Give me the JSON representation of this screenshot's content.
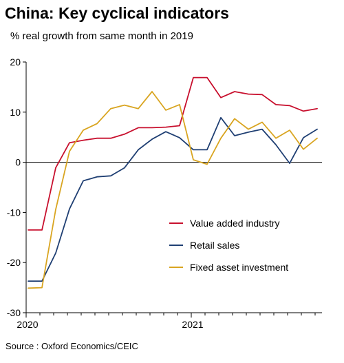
{
  "header": {
    "title": "China: Key cyclical indicators",
    "subtitle": "% real growth from same month in 2019"
  },
  "footer": {
    "source": "Source : Oxford Economics/CEIC"
  },
  "chart_data": {
    "type": "line",
    "title": "China: Key cyclical indicators",
    "subtitle": "% real growth from same month in 2019",
    "xlabel": "",
    "ylabel": "",
    "x_tick_labels": [
      {
        "label": "2020",
        "x_index": 0
      },
      {
        "label": "2021",
        "x_index": 12
      }
    ],
    "x": [
      "2020-01",
      "2020-02",
      "2020-03",
      "2020-04",
      "2020-05",
      "2020-06",
      "2020-07",
      "2020-08",
      "2020-09",
      "2020-10",
      "2020-11",
      "2020-12",
      "2021-01",
      "2021-02",
      "2021-03",
      "2021-04",
      "2021-05",
      "2021-06",
      "2021-07",
      "2021-08",
      "2021-09",
      "2021-10"
    ],
    "ylim": [
      -30,
      20
    ],
    "yticks": [
      -30,
      -20,
      -10,
      0,
      10,
      20
    ],
    "grid": false,
    "zero_line": true,
    "legend_position": "bottom-right",
    "series": [
      {
        "name": "Value added industry",
        "color": "#c8102e",
        "values": [
          -13.5,
          -13.5,
          -1.1,
          3.9,
          4.4,
          4.8,
          4.8,
          5.6,
          6.9,
          6.9,
          7.0,
          7.3,
          16.9,
          16.9,
          12.9,
          14.1,
          13.6,
          13.5,
          11.5,
          11.3,
          10.2,
          10.7
        ]
      },
      {
        "name": "Retail sales",
        "color": "#1f3f73",
        "values": [
          -23.7,
          -23.7,
          -18.1,
          -9.3,
          -3.7,
          -2.9,
          -2.7,
          -1.1,
          2.5,
          4.6,
          6.1,
          4.9,
          2.5,
          2.5,
          8.9,
          5.3,
          6.0,
          6.6,
          3.5,
          -0.2,
          4.9,
          6.6
        ]
      },
      {
        "name": "Fixed asset investment",
        "color": "#d9a521",
        "values": [
          -25.1,
          -25.0,
          -9.4,
          2.2,
          6.4,
          7.7,
          10.7,
          11.4,
          10.7,
          14.1,
          10.4,
          11.5,
          0.5,
          -0.4,
          4.8,
          8.7,
          6.6,
          8.0,
          4.8,
          6.4,
          2.6,
          4.8
        ]
      }
    ]
  }
}
